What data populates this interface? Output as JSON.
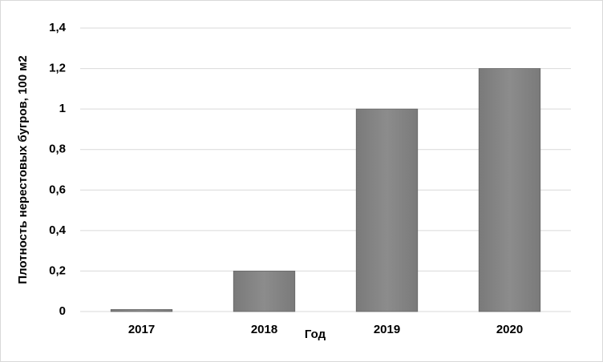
{
  "chart_data": {
    "type": "bar",
    "x_label": "Год",
    "y_label": "Плотность нерестовых бугров, 100 м2",
    "categories": [
      "2017",
      "2018",
      "2019",
      "2020"
    ],
    "values": [
      0.01,
      0.2,
      1,
      1.2
    ],
    "color": "#878787",
    "ylim": [
      0,
      1.4
    ],
    "yticks": [
      0,
      {
        "value": 0.2,
        "label": "0,2"
      },
      {
        "value": 0.4,
        "label": "0,4"
      },
      {
        "value": 0.6,
        "label": "0,6"
      },
      {
        "value": 0.8,
        "label": "0,8"
      },
      1,
      {
        "value": 1.2,
        "label": "1,2"
      },
      {
        "value": 1.4,
        "label": "1,4"
      }
    ],
    "grid": true
  }
}
